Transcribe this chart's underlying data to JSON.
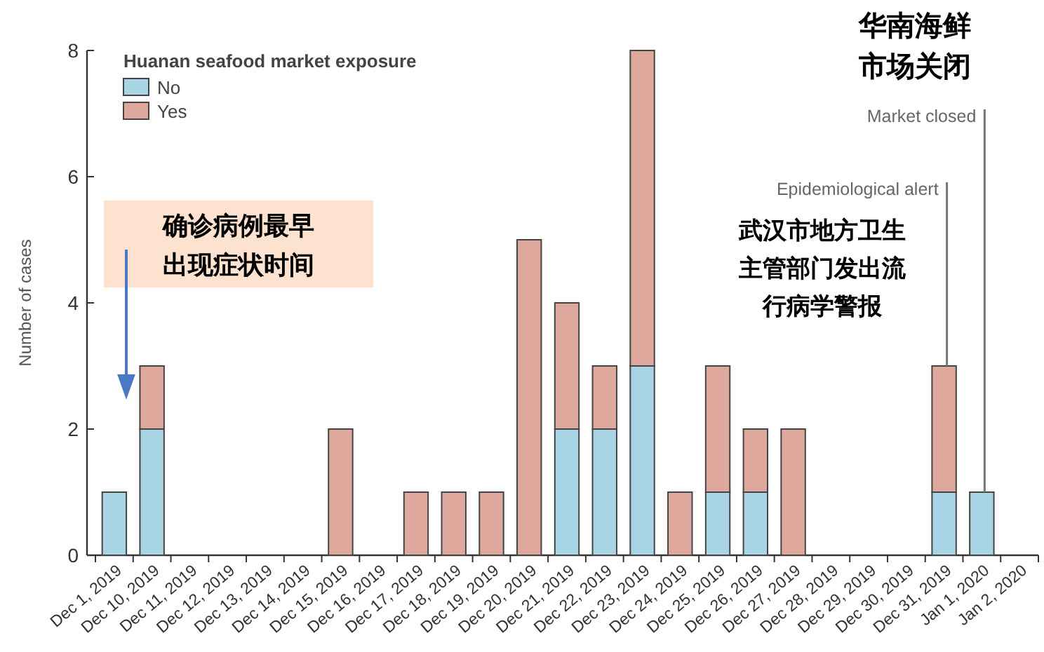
{
  "chart_data": {
    "type": "bar",
    "stacked": true,
    "ylabel": "Number of cases",
    "legend_title": "Huanan seafood market exposure",
    "legend": "top left",
    "categories": [
      "Dec 1, 2019",
      "Dec 10, 2019",
      "Dec 11, 2019",
      "Dec 12, 2019",
      "Dec 13, 2019",
      "Dec 14, 2019",
      "Dec 15, 2019",
      "Dec 16, 2019",
      "Dec 17, 2019",
      "Dec 18, 2019",
      "Dec 19, 2019",
      "Dec 20, 2019",
      "Dec 21, 2019",
      "Dec 22, 2019",
      "Dec 23, 2019",
      "Dec 24, 2019",
      "Dec 25, 2019",
      "Dec 26, 2019",
      "Dec 27, 2019",
      "Dec 28, 2019",
      "Dec 29, 2019",
      "Dec 30, 2019",
      "Dec 31, 2019",
      "Jan 1, 2020",
      "Jan 2, 2020"
    ],
    "series": [
      {
        "name": "No",
        "color": "#a8d4e6",
        "values": [
          1,
          2,
          0,
          0,
          0,
          0,
          0,
          0,
          0,
          0,
          0,
          0,
          2,
          2,
          3,
          0,
          1,
          1,
          0,
          0,
          0,
          0,
          1,
          1,
          0
        ]
      },
      {
        "name": "Yes",
        "color": "#dfa89c",
        "values": [
          0,
          1,
          0,
          0,
          0,
          0,
          2,
          0,
          1,
          1,
          1,
          5,
          2,
          1,
          5,
          1,
          2,
          1,
          2,
          0,
          0,
          0,
          2,
          0,
          0
        ]
      }
    ],
    "ylim": [
      0,
      8
    ],
    "yticks": [
      0,
      2,
      4,
      6,
      8
    ],
    "annotations": [
      "华南海鲜市场关闭",
      "Market closed",
      {
        "text": "Epidemiological alert",
        "x": "Dec 31, 2019",
        "y": 3
      },
      "武汉市地方卫生主管部门发出流行病学警报",
      "确诊病例最早出现症状时间"
    ]
  }
}
